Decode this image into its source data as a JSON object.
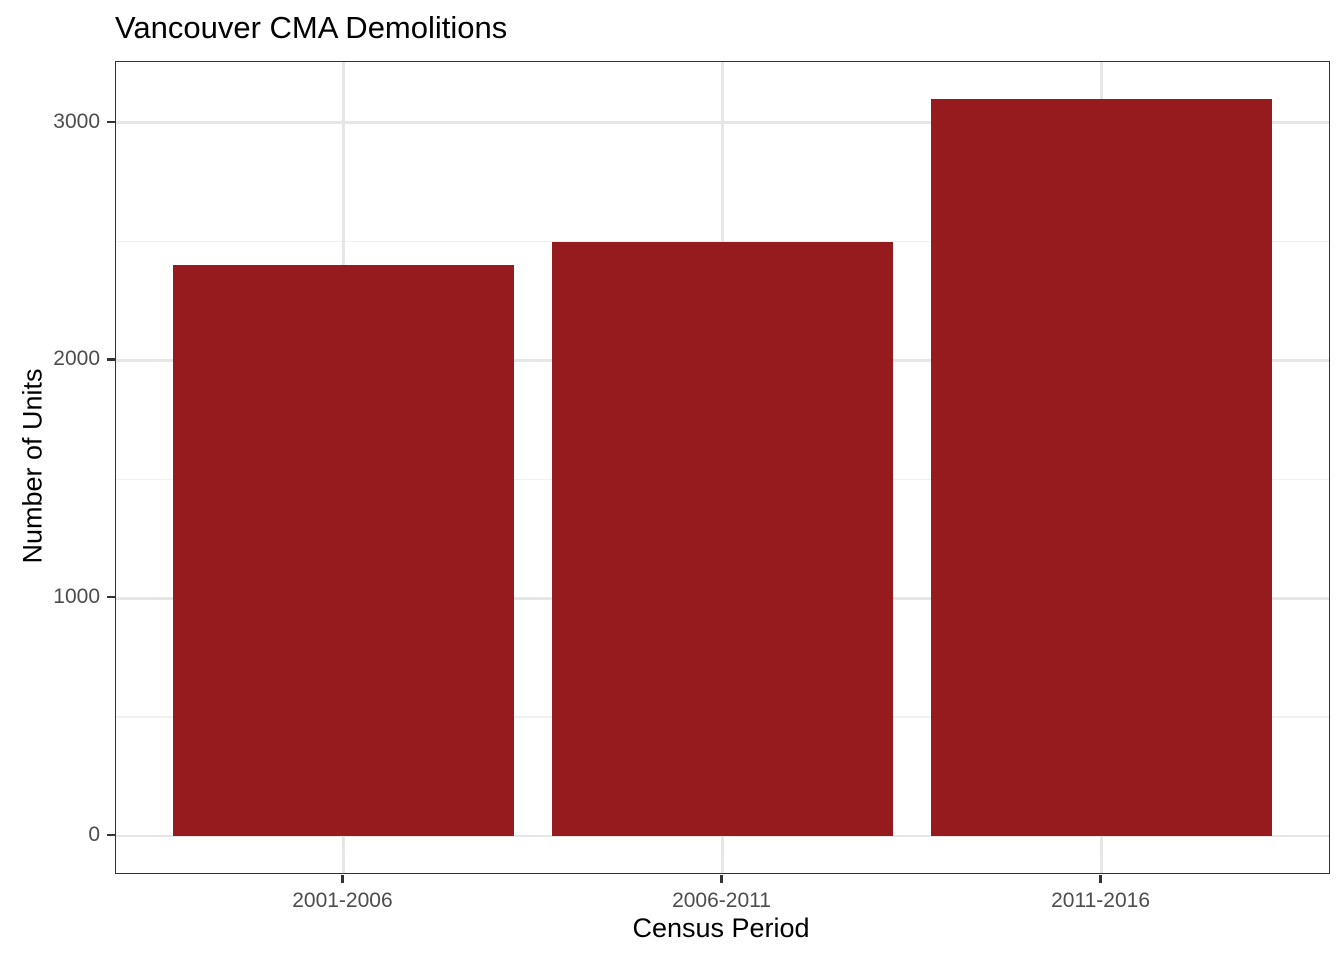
{
  "chart": {
    "title": "Vancouver CMA Demolitions",
    "xlabel": "Census Period",
    "ylabel": "Number of Units"
  },
  "chart_data": {
    "type": "bar",
    "title": "Vancouver CMA Demolitions",
    "xlabel": "Census Period",
    "ylabel": "Number of Units",
    "categories": [
      "2001-2006",
      "2006-2011",
      "2011-2016"
    ],
    "values": [
      2400,
      2500,
      3100
    ],
    "yticks": [
      0,
      1000,
      2000,
      3000
    ],
    "ytick_labels": [
      "0",
      "1000",
      "2000",
      "3000"
    ],
    "yticks_minor": [
      500,
      1500,
      2500
    ],
    "ylim": [
      0,
      3100
    ],
    "axis_range": [
      -155,
      3255
    ],
    "bar_width_frac": 0.9,
    "x_domain": [
      0.4,
      3.6
    ],
    "grid": true,
    "legend": false,
    "colors": {
      "bar": "#961B1E",
      "panel_border": "#333333",
      "grid_major": "#E6E6E6",
      "grid_minor": "#F1F1F1",
      "tick": "#333333",
      "tick_label": "#4D4D4D",
      "title_text": "#000000",
      "background": "#FFFFFF"
    }
  }
}
